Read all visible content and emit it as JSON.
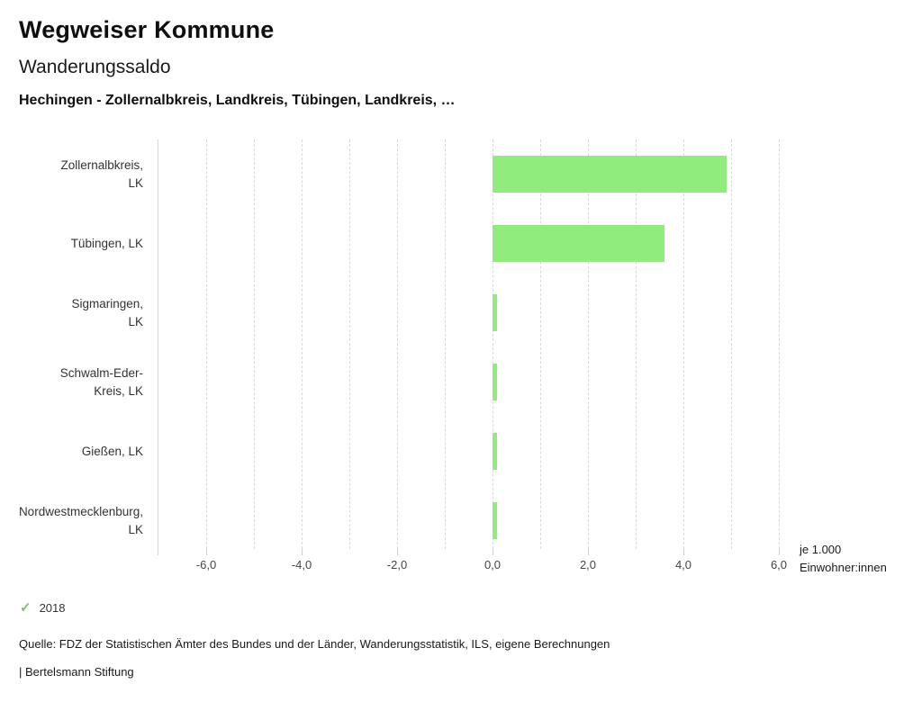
{
  "header": {
    "title": "Wegweiser Kommune",
    "subtitle": "Wanderungssaldo",
    "selection": "Hechingen - Zollernalbkreis, Landkreis, Tübingen, Landkreis, …"
  },
  "chart_data": {
    "type": "bar",
    "orientation": "horizontal",
    "title": "Wanderungssaldo",
    "categories": [
      "Zollernalbkreis, LK",
      "Tübingen, LK",
      "Sigmaringen, LK",
      "Schwalm-Eder-Kreis, LK",
      "Gießen, LK",
      "Nordwestmecklenburg, LK"
    ],
    "category_lines": [
      [
        "Zollernalbkreis,",
        "LK"
      ],
      [
        "Tübingen, LK"
      ],
      [
        "Sigmaringen,",
        "LK"
      ],
      [
        "Schwalm-Eder-",
        "Kreis, LK"
      ],
      [
        "Gießen, LK"
      ],
      [
        "Nordwestmecklenburg,",
        "LK"
      ]
    ],
    "series": [
      {
        "name": "2018",
        "values": [
          4.9,
          3.6,
          0.1,
          0.1,
          0.1,
          0.1
        ]
      }
    ],
    "xlim": [
      -7,
      6.2
    ],
    "x_tick_values": [
      -6,
      -4,
      -2,
      0,
      2,
      4,
      6
    ],
    "x_tick_labels": [
      "-6,0",
      "-4,0",
      "-2,0",
      "0,0",
      "2,0",
      "4,0",
      "6,0"
    ],
    "gridline_step": 1,
    "grid": true,
    "bar_color": "#90ed7d",
    "unit_label_line1": "je 1.000",
    "unit_label_line2": "Einwohner:innen",
    "legend_position": "bottom-left"
  },
  "legend": {
    "check_icon": "✓",
    "label": "2018",
    "color": "#79c36a"
  },
  "footer": {
    "source": "Quelle: FDZ der Statistischen Ämter des Bundes und der Länder, Wanderungsstatistik, ILS, eigene Berechnungen",
    "branding": "| Bertelsmann Stiftung"
  }
}
